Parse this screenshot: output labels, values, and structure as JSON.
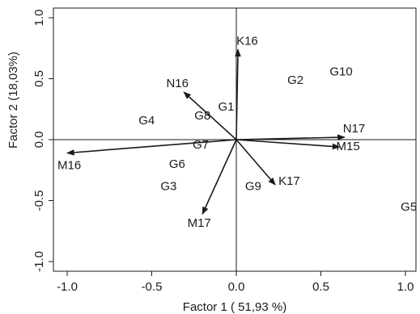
{
  "chart_data": {
    "type": "biplot",
    "xlabel": "Factor 1 ( 51,93 %)",
    "ylabel": "Factor 2 (18,03%)",
    "xlim": [
      -1.1,
      1.05
    ],
    "ylim": [
      -1.1,
      1.1
    ],
    "x_ticks": [
      {
        "v": -1.0,
        "label": "-1.0"
      },
      {
        "v": -0.5,
        "label": "-0.5"
      },
      {
        "v": 0.0,
        "label": "0.0"
      },
      {
        "v": 0.5,
        "label": "0.5"
      },
      {
        "v": 1.0,
        "label": "1.0"
      }
    ],
    "y_ticks": [
      {
        "v": 1.0,
        "label": "1.0"
      },
      {
        "v": 0.5,
        "label": "0.5"
      },
      {
        "v": 0.0,
        "label": "0.0"
      },
      {
        "v": -0.5,
        "label": "-0.5"
      },
      {
        "v": -1.0,
        "label": "-1.0"
      }
    ],
    "grid": false,
    "reference_lines": {
      "x": 0,
      "y": 0
    },
    "vectors": [
      {
        "label": "K16",
        "x": 0.01,
        "y": 0.74
      },
      {
        "label": "N16",
        "x": -0.31,
        "y": 0.39
      },
      {
        "label": "N17",
        "x": 0.64,
        "y": 0.02
      },
      {
        "label": "M15",
        "x": 0.61,
        "y": -0.06
      },
      {
        "label": "M16",
        "x": -1.0,
        "y": -0.11
      },
      {
        "label": "K17",
        "x": 0.23,
        "y": -0.37
      },
      {
        "label": "M17",
        "x": -0.2,
        "y": -0.61
      }
    ],
    "points": [
      {
        "label": "G1",
        "x": -0.06,
        "y": 0.27
      },
      {
        "label": "G2",
        "x": 0.35,
        "y": 0.49
      },
      {
        "label": "G3",
        "x": -0.4,
        "y": -0.38
      },
      {
        "label": "G4",
        "x": -0.53,
        "y": 0.16
      },
      {
        "label": "G5",
        "x": 1.02,
        "y": -0.55
      },
      {
        "label": "G6",
        "x": -0.35,
        "y": -0.2
      },
      {
        "label": "G7",
        "x": -0.21,
        "y": -0.04
      },
      {
        "label": "G8",
        "x": -0.2,
        "y": 0.2
      },
      {
        "label": "G9",
        "x": 0.1,
        "y": -0.38
      },
      {
        "label": "G10",
        "x": 0.62,
        "y": 0.56
      }
    ]
  }
}
